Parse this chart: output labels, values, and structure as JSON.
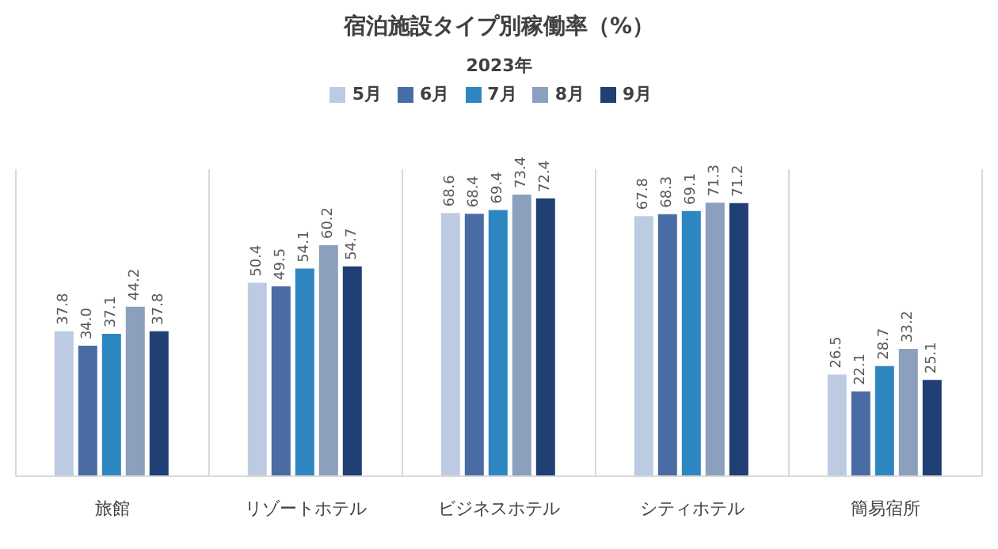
{
  "chart_data": {
    "type": "bar",
    "title": "宿泊施設タイプ別稼働率（%）",
    "subtitle": "2023年",
    "categories": [
      "旅館",
      "リゾートホテル",
      "ビジネスホテル",
      "シティホテル",
      "簡易宿所"
    ],
    "series": [
      {
        "name": "5月",
        "color": "#bdcbe2",
        "values": [
          37.8,
          50.4,
          68.6,
          67.8,
          26.5
        ],
        "value_labels": [
          "37.8",
          "50.4",
          "68.6",
          "67.8",
          "26.5"
        ]
      },
      {
        "name": "6月",
        "color": "#4a6ca5",
        "values": [
          34.0,
          49.5,
          68.4,
          68.3,
          22.1
        ],
        "value_labels": [
          "34.0",
          "49.5",
          "68.4",
          "68.3",
          "22.1"
        ]
      },
      {
        "name": "7月",
        "color": "#2e86c1",
        "values": [
          37.1,
          54.1,
          69.4,
          69.1,
          28.7
        ],
        "value_labels": [
          "37.1",
          "54.1",
          "69.4",
          "69.1",
          "28.7"
        ]
      },
      {
        "name": "8月",
        "color": "#8c9fbc",
        "values": [
          44.2,
          60.2,
          73.4,
          71.3,
          33.2
        ],
        "value_labels": [
          "44.2",
          "60.2",
          "73.4",
          "71.3",
          "33.2"
        ]
      },
      {
        "name": "9月",
        "color": "#203f75",
        "values": [
          37.8,
          54.7,
          72.4,
          71.2,
          25.1
        ],
        "value_labels": [
          "37.8",
          "54.7",
          "72.4",
          "71.2",
          "25.1"
        ]
      }
    ],
    "grid": "x",
    "legend": "top"
  }
}
